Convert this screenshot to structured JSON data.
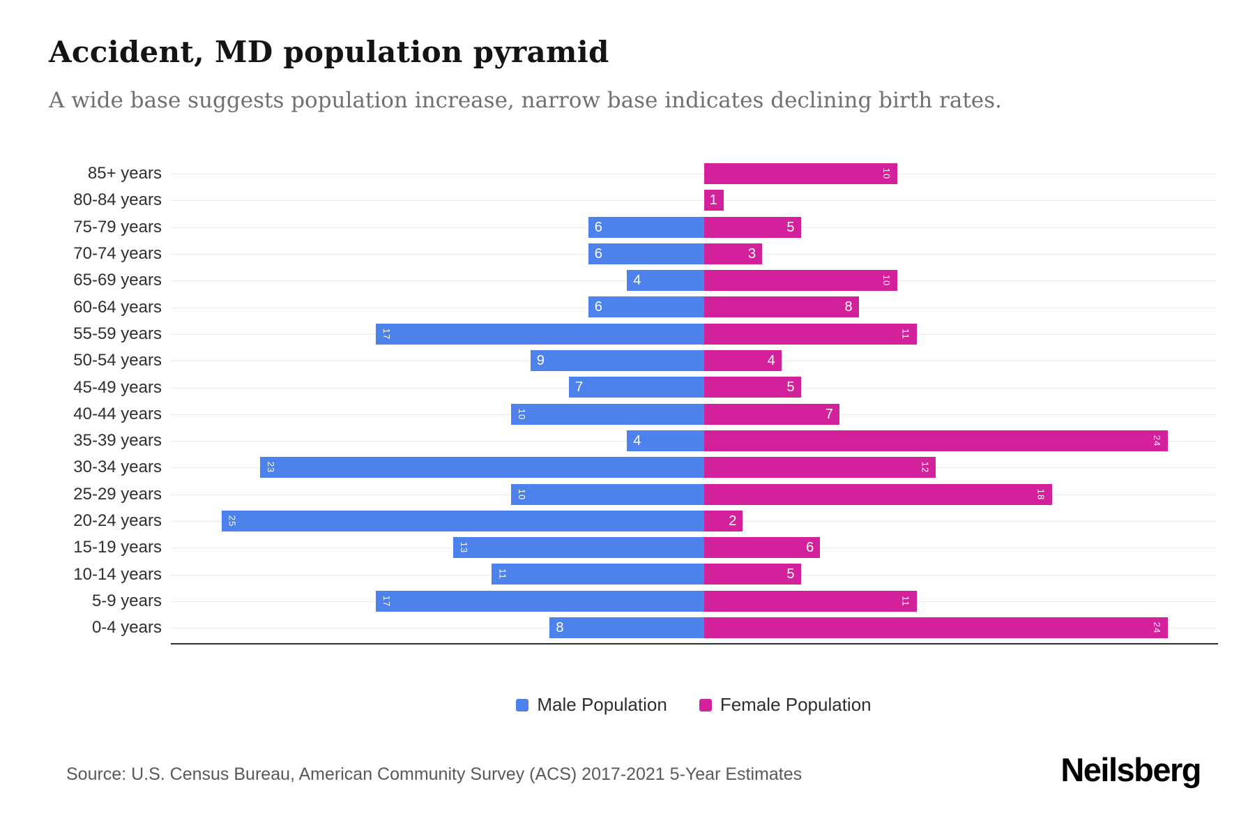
{
  "page": {
    "title": "Accident, MD population pyramid",
    "subtitle": "A wide base suggests population increase, narrow base indicates declining birth rates.",
    "source": "Source: U.S. Census Bureau, American Community Survey (ACS) 2017-2021 5-Year Estimates",
    "brand": "Neilsberg"
  },
  "colors": {
    "male": "#4d82ec",
    "female": "#d2219b"
  },
  "chart_data": {
    "type": "bar",
    "variant": "population-pyramid",
    "orientation": "horizontal",
    "title": "Accident, MD population pyramid",
    "subtitle": "A wide base suggests population increase, narrow base indicates declining birth rates.",
    "categories": [
      "85+ years",
      "80-84 years",
      "75-79 years",
      "70-74 years",
      "65-69 years",
      "60-64 years",
      "55-59 years",
      "50-54 years",
      "45-49 years",
      "40-44 years",
      "35-39 years",
      "30-34 years",
      "25-29 years",
      "20-24 years",
      "15-19 years",
      "10-14 years",
      "5-9 years",
      "0-4 years"
    ],
    "series": [
      {
        "name": "Male Population",
        "color": "#4d82ec",
        "values": [
          0,
          0,
          6,
          6,
          4,
          6,
          17,
          9,
          7,
          10,
          4,
          23,
          10,
          25,
          13,
          11,
          17,
          8
        ]
      },
      {
        "name": "Female Population",
        "color": "#d2219b",
        "values": [
          10,
          1,
          5,
          3,
          10,
          8,
          11,
          4,
          5,
          7,
          24,
          12,
          18,
          2,
          6,
          5,
          11,
          24
        ]
      }
    ],
    "xlim": [
      -27,
      27
    ],
    "grid": true,
    "legend_position": "bottom",
    "value_labels": "inside-bar-ends"
  }
}
